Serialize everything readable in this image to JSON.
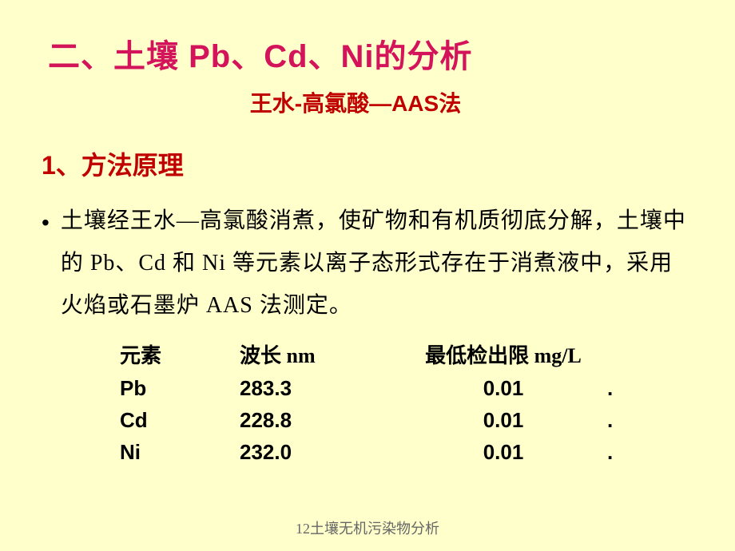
{
  "colors": {
    "background": "#ffffcc",
    "title": "#d4145a",
    "subtitle": "#c00000",
    "heading": "#c00000",
    "body": "#000000",
    "footer": "#666666"
  },
  "title": "二、土壤 Pb、Cd、Ni的分析",
  "subtitle": "王水-高氯酸—AAS法",
  "section_heading": "1、方法原理",
  "body_text": "土壤经王水—高氯酸消煮，使矿物和有机质彻底分解，土壤中的 Pb、Cd 和 Ni 等元素以离子态形式存在于消煮液中，采用火焰或石墨炉 AAS 法测定。",
  "bullet_char": "•",
  "table": {
    "headers": {
      "element": "元素",
      "wavelength": "波长 nm",
      "detection_limit": "最低检出限 mg/L"
    },
    "rows": [
      {
        "element": "Pb",
        "wavelength": "283.3",
        "detection_limit": "0.01",
        "dot": "."
      },
      {
        "element": "Cd",
        "wavelength": "228.8",
        "detection_limit": "0.01",
        "dot": "."
      },
      {
        "element": "Ni",
        "wavelength": "232.0",
        "detection_limit": "0.01",
        "dot": "."
      }
    ]
  },
  "footer": "12土壤无机污染物分析"
}
